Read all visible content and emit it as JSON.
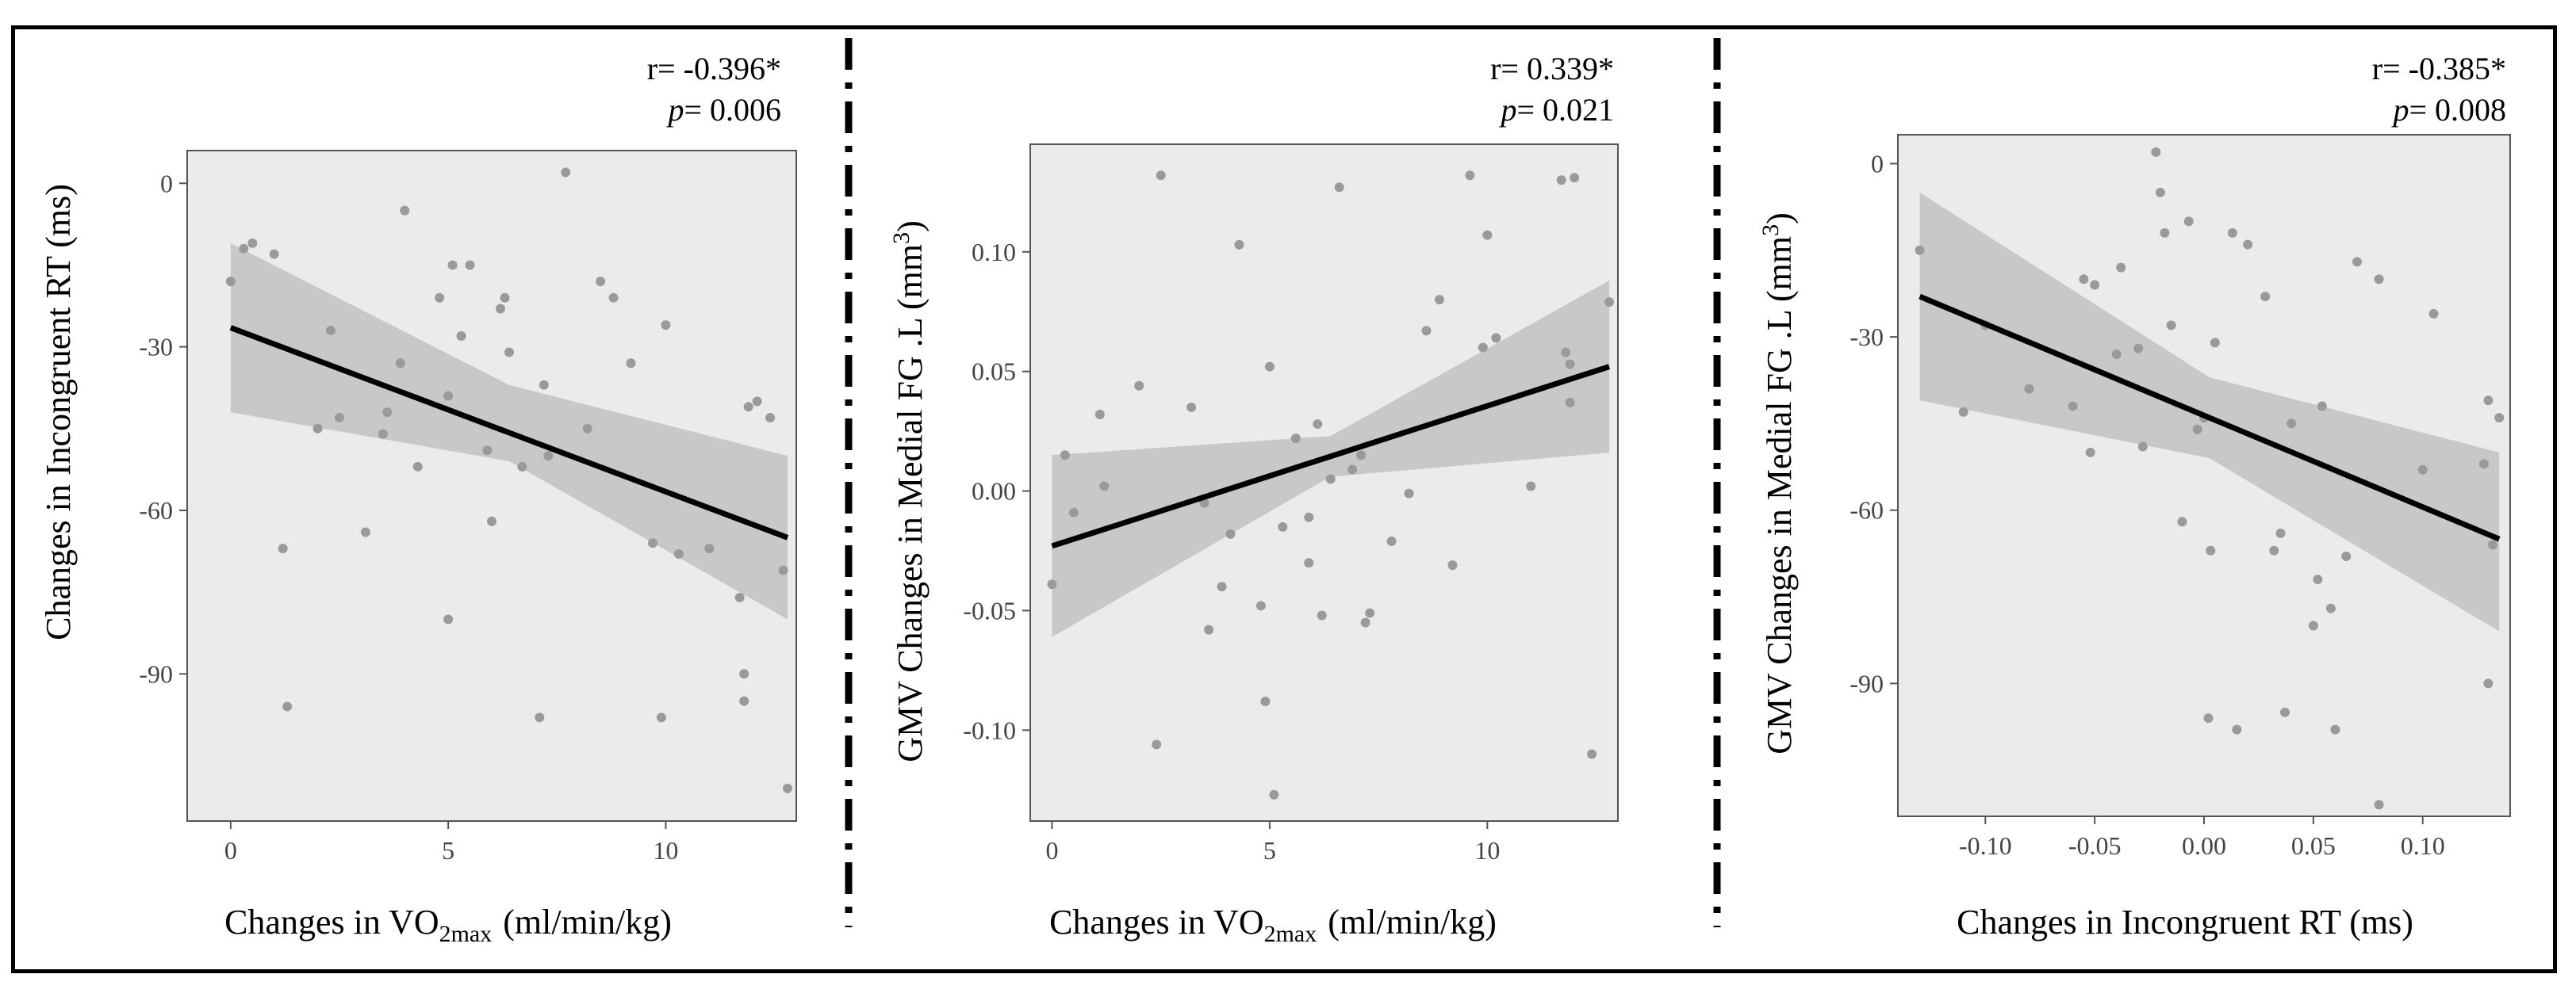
{
  "figure": {
    "panels": [
      {
        "stats": {
          "r_prefix": "r=",
          "r_value": "-0.396*",
          "p_prefix": "p",
          "p_value": "= 0.006"
        },
        "ylabel": "Changes in Incongruent RT (ms)",
        "xlabel": {
          "pre": "Changes in VO",
          "sub": "2max",
          "post": "(ml/min/kg)"
        }
      },
      {
        "stats": {
          "r_prefix": "r=",
          "r_value": "0.339*",
          "p_prefix": "p",
          "p_value": "= 0.021"
        },
        "ylabel": {
          "pre": "GMV Changes in Medial FG .L (mm",
          "sup": "3",
          "post": ")"
        },
        "xlabel": {
          "pre": "Changes in VO",
          "sub": "2max",
          "post": "(ml/min/kg)"
        }
      },
      {
        "stats": {
          "r_prefix": "r=",
          "r_value": "-0.385*",
          "p_prefix": "p",
          "p_value": "= 0.008"
        },
        "ylabel": {
          "pre": "GMV Changes in Medial FG .L (mm",
          "sup": "3",
          "post": ")"
        },
        "xlabel": "Changes in Incongruent RT (ms)"
      }
    ],
    "colors": {
      "panel_bg": "#ebebeb",
      "point": "#9a9a9a",
      "band": "#c8c8c8",
      "line": "#000000"
    }
  },
  "chart_data": [
    {
      "type": "scatter",
      "xlim": [
        -1,
        13
      ],
      "ylim": [
        -117,
        6
      ],
      "x_ticks": [
        0,
        5,
        10
      ],
      "y_ticks": [
        0,
        -30,
        -60,
        -90
      ],
      "points": [
        [
          0,
          -18
        ],
        [
          0.3,
          -12
        ],
        [
          0.5,
          -11
        ],
        [
          1.0,
          -13
        ],
        [
          1.2,
          -67
        ],
        [
          1.3,
          -96
        ],
        [
          2.0,
          -45
        ],
        [
          2.3,
          -27
        ],
        [
          2.5,
          -43
        ],
        [
          3.1,
          -64
        ],
        [
          3.5,
          -46
        ],
        [
          3.6,
          -42
        ],
        [
          3.9,
          -33
        ],
        [
          4.0,
          -5
        ],
        [
          4.3,
          -52
        ],
        [
          4.8,
          -21
        ],
        [
          5.0,
          -39
        ],
        [
          5.0,
          -80
        ],
        [
          5.1,
          -15
        ],
        [
          5.3,
          -28
        ],
        [
          5.5,
          -15
        ],
        [
          5.9,
          -49
        ],
        [
          6.0,
          -62
        ],
        [
          6.2,
          -23
        ],
        [
          6.3,
          -21
        ],
        [
          6.4,
          -31
        ],
        [
          6.7,
          -52
        ],
        [
          7.1,
          -98
        ],
        [
          7.2,
          -37
        ],
        [
          7.3,
          -50
        ],
        [
          7.7,
          2
        ],
        [
          8.2,
          -45
        ],
        [
          8.5,
          -18
        ],
        [
          8.8,
          -21
        ],
        [
          9.2,
          -33
        ],
        [
          9.7,
          -66
        ],
        [
          9.9,
          -98
        ],
        [
          10.0,
          -26
        ],
        [
          10.3,
          -68
        ],
        [
          11.0,
          -67
        ],
        [
          11.7,
          -76
        ],
        [
          11.8,
          -90
        ],
        [
          11.8,
          -95
        ],
        [
          11.9,
          -41
        ],
        [
          12.1,
          -40
        ],
        [
          12.4,
          -43
        ],
        [
          12.7,
          -71
        ],
        [
          12.8,
          -111
        ]
      ],
      "fit": {
        "x": [
          0,
          12.8
        ],
        "y": [
          -26.5,
          -65
        ]
      },
      "ci": {
        "x": [
          0,
          6.4,
          12.8
        ],
        "upper": [
          -11,
          -37,
          -50
        ],
        "lower": [
          -42,
          -51,
          -80
        ]
      }
    },
    {
      "type": "scatter",
      "xlim": [
        -0.5,
        13
      ],
      "ylim": [
        -0.138,
        0.145
      ],
      "x_ticks": [
        0,
        5,
        10
      ],
      "y_ticks": [
        0.1,
        0.05,
        0.0,
        -0.05,
        -0.1
      ],
      "y_tick_labels": [
        "0.10",
        "0.05",
        "0.00",
        "-0.05",
        "-0.10"
      ],
      "points": [
        [
          0,
          -0.039
        ],
        [
          0.3,
          0.015
        ],
        [
          0.5,
          -0.009
        ],
        [
          1.1,
          0.032
        ],
        [
          1.2,
          0.002
        ],
        [
          2.0,
          0.044
        ],
        [
          2.4,
          -0.106
        ],
        [
          2.5,
          0.132
        ],
        [
          3.2,
          0.035
        ],
        [
          3.5,
          -0.005
        ],
        [
          3.6,
          -0.058
        ],
        [
          3.9,
          -0.04
        ],
        [
          4.1,
          -0.018
        ],
        [
          4.3,
          0.103
        ],
        [
          4.8,
          -0.048
        ],
        [
          4.9,
          -0.088
        ],
        [
          5.0,
          0.052
        ],
        [
          5.1,
          -0.127
        ],
        [
          5.3,
          -0.015
        ],
        [
          5.6,
          0.022
        ],
        [
          5.9,
          -0.011
        ],
        [
          5.9,
          -0.03
        ],
        [
          6.1,
          0.028
        ],
        [
          6.2,
          -0.052
        ],
        [
          6.4,
          0.005
        ],
        [
          6.6,
          0.127
        ],
        [
          6.9,
          0.009
        ],
        [
          7.1,
          0.015
        ],
        [
          7.2,
          -0.055
        ],
        [
          7.3,
          -0.051
        ],
        [
          7.8,
          -0.021
        ],
        [
          8.2,
          -0.001
        ],
        [
          8.6,
          0.067
        ],
        [
          8.9,
          0.08
        ],
        [
          9.2,
          -0.031
        ],
        [
          9.6,
          0.132
        ],
        [
          9.9,
          0.06
        ],
        [
          10.0,
          0.107
        ],
        [
          10.2,
          0.064
        ],
        [
          11.0,
          0.002
        ],
        [
          11.7,
          0.13
        ],
        [
          11.8,
          0.058
        ],
        [
          11.9,
          0.053
        ],
        [
          11.9,
          0.037
        ],
        [
          12.0,
          0.131
        ],
        [
          12.4,
          -0.11
        ],
        [
          12.8,
          0.079
        ]
      ],
      "fit": {
        "x": [
          0,
          12.8
        ],
        "y": [
          -0.023,
          0.052
        ]
      },
      "ci": {
        "x": [
          0,
          6.4,
          12.8
        ],
        "upper": [
          0.015,
          0.023,
          0.088
        ],
        "lower": [
          -0.061,
          0.006,
          0.016
        ]
      }
    },
    {
      "type": "scatter",
      "xlim": [
        -0.14,
        0.14
      ],
      "ylim": [
        -113,
        5
      ],
      "x_ticks": [
        -0.1,
        -0.05,
        0.0,
        0.05,
        0.1
      ],
      "x_tick_labels": [
        "-0.10",
        "-0.05",
        "0.00",
        "0.05",
        "0.10"
      ],
      "y_ticks": [
        0,
        -30,
        -60,
        -90
      ],
      "points": [
        [
          -0.13,
          -15
        ],
        [
          -0.11,
          -43
        ],
        [
          -0.1,
          -28
        ],
        [
          -0.08,
          -39
        ],
        [
          -0.06,
          -42
        ],
        [
          -0.055,
          -20
        ],
        [
          -0.052,
          -50
        ],
        [
          -0.05,
          -21
        ],
        [
          -0.04,
          -33
        ],
        [
          -0.038,
          -18
        ],
        [
          -0.03,
          -32
        ],
        [
          -0.028,
          -49
        ],
        [
          -0.022,
          2
        ],
        [
          -0.02,
          -5
        ],
        [
          -0.018,
          -12
        ],
        [
          -0.015,
          -28
        ],
        [
          -0.01,
          -62
        ],
        [
          -0.007,
          -10
        ],
        [
          -0.003,
          -46
        ],
        [
          0,
          -44
        ],
        [
          0.002,
          -96
        ],
        [
          0.003,
          -67
        ],
        [
          0.005,
          -31
        ],
        [
          0.013,
          -12
        ],
        [
          0.015,
          -98
        ],
        [
          0.02,
          -14
        ],
        [
          0.028,
          -23
        ],
        [
          0.032,
          -67
        ],
        [
          0.035,
          -64
        ],
        [
          0.037,
          -95
        ],
        [
          0.04,
          -45
        ],
        [
          0.05,
          -80
        ],
        [
          0.052,
          -72
        ],
        [
          0.054,
          -42
        ],
        [
          0.058,
          -77
        ],
        [
          0.06,
          -98
        ],
        [
          0.065,
          -68
        ],
        [
          0.07,
          -17
        ],
        [
          0.08,
          -20
        ],
        [
          0.08,
          -111
        ],
        [
          0.1,
          -53
        ],
        [
          0.105,
          -26
        ],
        [
          0.128,
          -52
        ],
        [
          0.13,
          -90
        ],
        [
          0.13,
          -41
        ],
        [
          0.132,
          -66
        ],
        [
          0.135,
          -44
        ]
      ],
      "fit": {
        "x": [
          -0.13,
          0.135
        ],
        "y": [
          -23,
          -65
        ]
      },
      "ci": {
        "x": [
          -0.13,
          0.0025,
          0.135
        ],
        "upper": [
          -5,
          -37,
          -50
        ],
        "lower": [
          -41,
          -51,
          -81
        ]
      }
    }
  ]
}
